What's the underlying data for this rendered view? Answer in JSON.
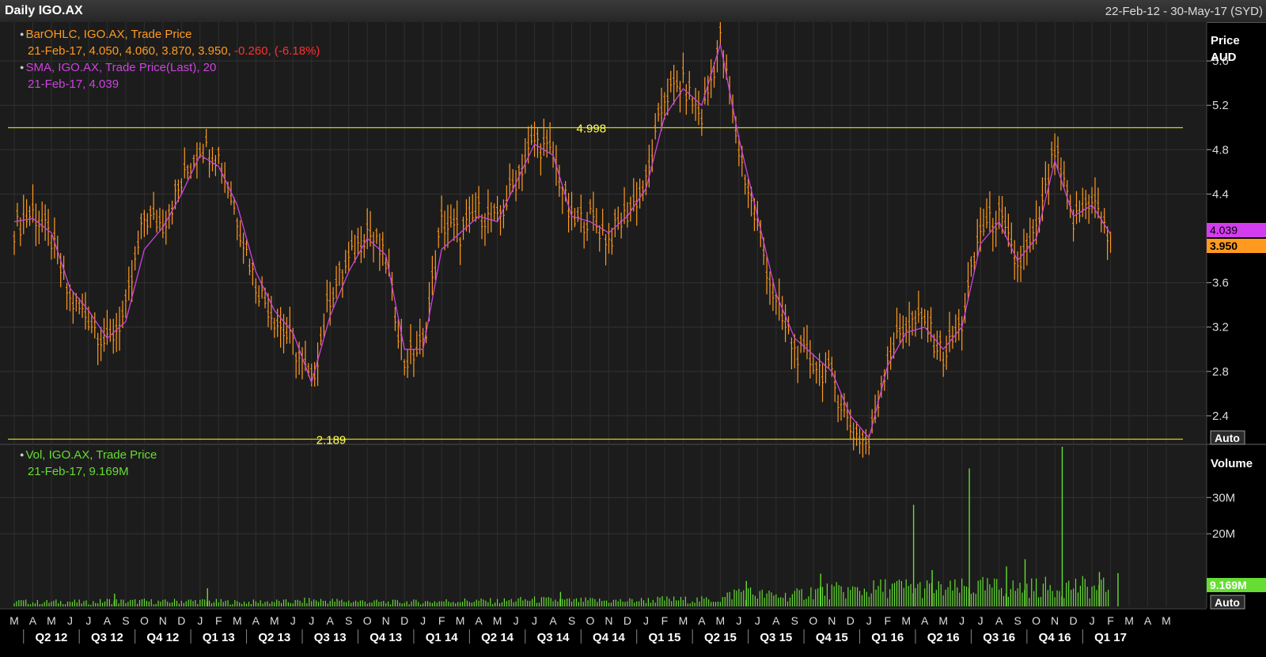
{
  "header": {
    "title": "Daily IGO.AX",
    "date_range": "22-Feb-12 - 30-May-17 (SYD)"
  },
  "price_legend": {
    "bar_line1": "BarOHLC, IGO.AX, Trade Price",
    "bar_line2_date": "21-Feb-17,",
    "bar_line2_ohlc": "4.050, 4.060, 3.870, 3.950,",
    "bar_line2_change": "-0.260, (-6.18%)",
    "sma_line1": "SMA, IGO.AX, Trade Price(Last),  20",
    "sma_line2": "21-Feb-17, 4.039"
  },
  "volume_legend": {
    "line1": "Vol, IGO.AX, Trade Price",
    "line2": "21-Feb-17, 9.169M"
  },
  "price_axis": {
    "title_line1": "Price",
    "title_line2": "AUD",
    "auto_button": "Auto",
    "sma_tag": "4.039",
    "close_tag": "3.950"
  },
  "volume_axis": {
    "title": "Volume",
    "auto_button": "Auto",
    "last_tag": "9.169M"
  },
  "colors": {
    "background": "#1c1c1c",
    "price_bars": "#ff9a1f",
    "sma": "#cc44dd",
    "volume": "#66dd33",
    "level_lines": "#d4d40a",
    "negative_change": "#ff3030"
  },
  "chart_data": [
    {
      "type": "line",
      "panel": "price",
      "x_range": [
        "22-Feb-12",
        "30-May-17"
      ],
      "ylim": [
        2.15,
        5.95
      ],
      "y_ticks": [
        2.4,
        2.8,
        3.2,
        3.6,
        4.4,
        4.8,
        5.2,
        5.6
      ],
      "y_tick_labels": [
        "2.4",
        "2.8",
        "3.2",
        "3.6",
        "4.4",
        "4.8",
        "5.2",
        "5.6"
      ],
      "grid": true,
      "annotations": [
        {
          "label": "4.998",
          "y": 4.998,
          "x": "Sep-14"
        },
        {
          "label": "2.189",
          "y": 2.189,
          "x": "Jul-13"
        }
      ],
      "series": [
        {
          "kind": "ohlc_bars",
          "dates": [
            "Mar-12",
            "Apr-12",
            "May-12",
            "Jun-12",
            "Jul-12",
            "Aug-12",
            "Sep-12",
            "Oct-12",
            "Nov-12",
            "Dec-12",
            "Jan-13",
            "Feb-13",
            "Mar-13",
            "Apr-13",
            "May-13",
            "Jun-13",
            "Jul-13",
            "Aug-13",
            "Sep-13",
            "Oct-13",
            "Nov-13",
            "Dec-13",
            "Jan-14",
            "Feb-14",
            "Mar-14",
            "Apr-14",
            "May-14",
            "Jun-14",
            "Jul-14",
            "Aug-14",
            "Sep-14",
            "Oct-14",
            "Nov-14",
            "Dec-14",
            "Jan-15",
            "Feb-15",
            "Mar-15",
            "Apr-15",
            "May-15",
            "Jun-15",
            "Jul-15",
            "Aug-15",
            "Sep-15",
            "Oct-15",
            "Nov-15",
            "Dec-15",
            "Jan-16",
            "Feb-16",
            "Mar-16",
            "Apr-16",
            "May-16",
            "Jun-16",
            "Jul-16",
            "Aug-16",
            "Sep-16",
            "Oct-16",
            "Nov-16",
            "Dec-16",
            "Jan-17",
            "Feb-17"
          ],
          "close": [
            4.1,
            4.25,
            4.0,
            3.45,
            3.3,
            3.05,
            3.35,
            4.2,
            4.15,
            4.5,
            4.85,
            4.75,
            4.2,
            3.6,
            3.3,
            3.05,
            2.7,
            3.5,
            3.8,
            4.1,
            3.8,
            2.9,
            3.05,
            4.15,
            4.05,
            4.25,
            4.15,
            4.55,
            4.9,
            4.75,
            4.15,
            4.2,
            4.0,
            4.25,
            4.5,
            5.3,
            5.4,
            5.1,
            5.8,
            4.8,
            4.1,
            3.4,
            3.0,
            2.9,
            2.75,
            2.3,
            2.15,
            2.95,
            3.25,
            3.25,
            2.95,
            3.25,
            4.1,
            4.2,
            3.75,
            4.05,
            4.8,
            4.15,
            4.4,
            3.95
          ]
        },
        {
          "name": "SMA 20",
          "close": [
            4.15,
            4.18,
            4.05,
            3.55,
            3.35,
            3.1,
            3.25,
            3.9,
            4.1,
            4.4,
            4.75,
            4.65,
            4.3,
            3.7,
            3.35,
            3.15,
            2.7,
            3.3,
            3.7,
            4.0,
            3.85,
            3.0,
            3.0,
            3.9,
            4.05,
            4.2,
            4.15,
            4.5,
            4.85,
            4.75,
            4.2,
            4.15,
            4.05,
            4.2,
            4.45,
            5.1,
            5.35,
            5.2,
            5.75,
            4.9,
            4.2,
            3.5,
            3.1,
            2.95,
            2.8,
            2.4,
            2.2,
            2.85,
            3.15,
            3.2,
            3.0,
            3.2,
            3.95,
            4.15,
            3.8,
            4.0,
            4.7,
            4.2,
            4.3,
            4.039
          ]
        }
      ]
    },
    {
      "type": "bar",
      "panel": "volume",
      "ylim": [
        0,
        44
      ],
      "y_ticks": [
        20,
        30
      ],
      "y_tick_labels": [
        "20M",
        "30M"
      ],
      "x_tick_labels": [
        "M",
        "A",
        "M",
        "J",
        "J",
        "A",
        "S",
        "O",
        "N",
        "D",
        "J",
        "F",
        "M",
        "A",
        "M",
        "J",
        "J",
        "A",
        "S",
        "O",
        "N",
        "D",
        "J",
        "F",
        "M",
        "A",
        "M",
        "J",
        "J",
        "A",
        "S",
        "O",
        "N",
        "D",
        "J",
        "F",
        "M",
        "A",
        "M",
        "J",
        "J",
        "A",
        "S",
        "O",
        "N",
        "D",
        "J",
        "F",
        "M",
        "A",
        "M",
        "J",
        "J",
        "A",
        "S",
        "O",
        "N",
        "D",
        "J",
        "F",
        "M",
        "A",
        "M"
      ],
      "x_quarter_labels": [
        "Q2 12",
        "Q3 12",
        "Q4 12",
        "Q1 13",
        "Q2 13",
        "Q3 13",
        "Q4 13",
        "Q1 14",
        "Q2 14",
        "Q3 14",
        "Q4 14",
        "Q1 15",
        "Q2 15",
        "Q3 15",
        "Q4 15",
        "Q1 16",
        "Q2 16",
        "Q3 16",
        "Q4 16",
        "Q1 17"
      ],
      "series": [
        {
          "dates": [
            "Mar-12",
            "Apr-12",
            "May-12",
            "Jun-12",
            "Jul-12",
            "Aug-12",
            "Sep-12",
            "Oct-12",
            "Nov-12",
            "Dec-12",
            "Jan-13",
            "Feb-13",
            "Mar-13",
            "Apr-13",
            "May-13",
            "Jun-13",
            "Jul-13",
            "Aug-13",
            "Sep-13",
            "Oct-13",
            "Nov-13",
            "Dec-13",
            "Jan-14",
            "Feb-14",
            "Mar-14",
            "Apr-14",
            "May-14",
            "Jun-14",
            "Jul-14",
            "Aug-14",
            "Sep-14",
            "Oct-14",
            "Nov-14",
            "Dec-14",
            "Jan-15",
            "Feb-15",
            "Mar-15",
            "Apr-15",
            "May-15",
            "Jun-15",
            "Jul-15",
            "Aug-15",
            "Sep-15",
            "Oct-15",
            "Nov-15",
            "Dec-15",
            "Jan-16",
            "Feb-16",
            "Mar-16",
            "Apr-16",
            "May-16",
            "Jun-16",
            "Jul-16",
            "Aug-16",
            "Sep-16",
            "Oct-16",
            "Nov-16",
            "Dec-16",
            "Jan-17",
            "Feb-17"
          ],
          "values": [
            1.5,
            1.2,
            1.3,
            1.4,
            1.1,
            1.6,
            1.4,
            1.5,
            1.3,
            1.6,
            1.5,
            1.4,
            1.2,
            1.3,
            1.4,
            1.3,
            1.8,
            1.6,
            1.5,
            1.4,
            1.2,
            1.3,
            1.3,
            1.5,
            1.6,
            1.6,
            1.5,
            1.8,
            1.9,
            1.8,
            1.6,
            1.7,
            1.6,
            1.6,
            1.8,
            2.0,
            1.9,
            1.9,
            2.0,
            4.5,
            3.5,
            3.0,
            3.2,
            4.5,
            4.5,
            4.5,
            4.8,
            5.5,
            5.5,
            5.2,
            4.8,
            5.2,
            5.5,
            5.5,
            5.2,
            5.5,
            5.5,
            6.0,
            5.2,
            5.5
          ],
          "peaks": [
            {
              "date": "Aug-12",
              "value": 3.5
            },
            {
              "date": "Jan-13",
              "value": 5.0
            },
            {
              "date": "Aug-14",
              "value": 4.0
            },
            {
              "date": "Jun-15",
              "value": 7.0
            },
            {
              "date": "Oct-15",
              "value": 9.0
            },
            {
              "date": "Mar-16",
              "value": 28.0
            },
            {
              "date": "Apr-16",
              "value": 10.0
            },
            {
              "date": "Jun-16",
              "value": 38.0
            },
            {
              "date": "Aug-16",
              "value": 11.0
            },
            {
              "date": "Sep-16",
              "value": 13.0
            },
            {
              "date": "Nov-16",
              "value": 44.0
            },
            {
              "date": "Jan-17",
              "value": 9.5
            },
            {
              "date": "Feb-17",
              "value": 9.169
            }
          ]
        }
      ]
    }
  ]
}
